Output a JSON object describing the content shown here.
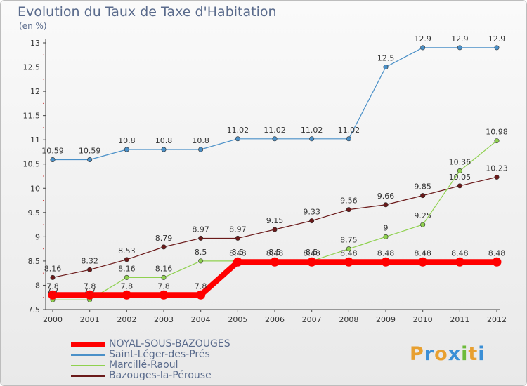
{
  "title": "Evolution du Taux de Taxe d'Habitation",
  "ylabel": "(en %)",
  "brand": {
    "letters": [
      "P",
      "r",
      "o",
      "x",
      "i",
      "t",
      "i"
    ],
    "colors": [
      "#e8a030",
      "#3b8fd6",
      "#e8a030",
      "#3b8fd6",
      "#6dbb3a",
      "#e8a030",
      "#3b8fd6"
    ]
  },
  "chart_data": {
    "type": "line",
    "title": "Evolution du Taux de Taxe d'Habitation",
    "ylabel": "(en %)",
    "xlabel": "",
    "x": [
      "2000",
      "2001",
      "2002",
      "2003",
      "2004",
      "2005",
      "2006",
      "2007",
      "2008",
      "2009",
      "2010",
      "2011",
      "2012"
    ],
    "ylim": [
      7.5,
      13
    ],
    "yticks": [
      "7.5",
      "8",
      "8.5",
      "9",
      "9.5",
      "10",
      "10.5",
      "11",
      "11.5",
      "12",
      "12.5",
      "13"
    ],
    "grid": false,
    "legend_position": "bottom-left",
    "series": [
      {
        "name": "NOYAL-SOUS-BAZOUGES",
        "color": "#ff0000",
        "values": [
          7.8,
          7.8,
          7.8,
          7.8,
          7.8,
          8.48,
          8.48,
          8.48,
          8.48,
          8.48,
          8.48,
          8.48,
          8.48
        ],
        "labels": [
          "7.8",
          "7.8",
          "7.8",
          "7.8",
          "7.8",
          "8.48",
          "8.48",
          "8.48",
          "8.48",
          "8.48",
          "8.48",
          "8.48",
          "8.48"
        ]
      },
      {
        "name": "Saint-Léger-des-Prés",
        "color": "#4a90c8",
        "values": [
          10.59,
          10.59,
          10.8,
          10.8,
          10.8,
          11.02,
          11.02,
          11.02,
          11.02,
          12.5,
          12.9,
          12.9,
          12.9
        ],
        "labels": [
          "10.59",
          "10.59",
          "10.8",
          "10.8",
          "10.8",
          "11.02",
          "11.02",
          "11.02",
          "11.02",
          "12.5",
          "12.9",
          "12.9",
          "12.9"
        ]
      },
      {
        "name": "Marcillé-Raoul",
        "color": "#8fd14f",
        "values": [
          7.7,
          7.7,
          8.16,
          8.16,
          8.5,
          8.5,
          8.5,
          8.5,
          8.75,
          9,
          9.25,
          10.36,
          10.98
        ],
        "labels": [
          "7.7",
          "7.7",
          "8.16",
          "8.16",
          "8.5",
          "8.5",
          "8.5",
          "8.5",
          "8.75",
          "9",
          "9.25",
          "10.36",
          "10.98"
        ]
      },
      {
        "name": "Bazouges-la-Pérouse",
        "color": "#6b1a1a",
        "values": [
          8.16,
          8.32,
          8.53,
          8.79,
          8.97,
          8.97,
          9.15,
          9.33,
          9.56,
          9.66,
          9.85,
          10.05,
          10.23
        ],
        "labels": [
          "8.16",
          "8.32",
          "8.53",
          "8.79",
          "8.97",
          "8.97",
          "9.15",
          "9.33",
          "9.56",
          "9.66",
          "9.85",
          "10.05",
          "10.23"
        ]
      }
    ]
  }
}
